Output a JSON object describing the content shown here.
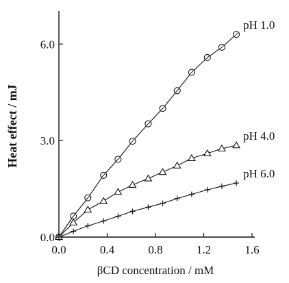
{
  "chart_data": {
    "type": "line",
    "xlabel": "βCD concentration / mM",
    "ylabel": "Heat effect / mJ",
    "xlim": [
      0.0,
      1.6
    ],
    "ylim": [
      0.0,
      6.9
    ],
    "xticks": [
      "0.0",
      "0.4",
      "0.8",
      "1.2",
      "1.6"
    ],
    "yticks": [
      "0.0",
      "3.0",
      "6.0"
    ],
    "grid": false,
    "legend": "labels at right end of each curve",
    "series": [
      {
        "name": "pH 1.0",
        "marker": "circle",
        "x": [
          0.0,
          0.12,
          0.24,
          0.37,
          0.49,
          0.61,
          0.74,
          0.86,
          0.98,
          1.1,
          1.23,
          1.35,
          1.47
        ],
        "y": [
          0.0,
          0.65,
          1.22,
          1.92,
          2.42,
          2.98,
          3.52,
          4.0,
          4.55,
          5.12,
          5.58,
          5.9,
          6.3
        ]
      },
      {
        "name": "pH 4.0",
        "marker": "triangle",
        "x": [
          0.0,
          0.12,
          0.24,
          0.37,
          0.49,
          0.61,
          0.74,
          0.86,
          0.98,
          1.1,
          1.23,
          1.35,
          1.47
        ],
        "y": [
          0.0,
          0.45,
          0.85,
          1.12,
          1.4,
          1.62,
          1.82,
          2.02,
          2.22,
          2.45,
          2.6,
          2.75,
          2.85
        ]
      },
      {
        "name": "pH 6.0",
        "marker": "plus",
        "x": [
          0.0,
          0.12,
          0.24,
          0.37,
          0.49,
          0.61,
          0.74,
          0.86,
          0.98,
          1.1,
          1.23,
          1.35,
          1.47
        ],
        "y": [
          0.0,
          0.18,
          0.35,
          0.5,
          0.65,
          0.8,
          0.93,
          1.05,
          1.2,
          1.33,
          1.47,
          1.58,
          1.68
        ]
      }
    ]
  }
}
